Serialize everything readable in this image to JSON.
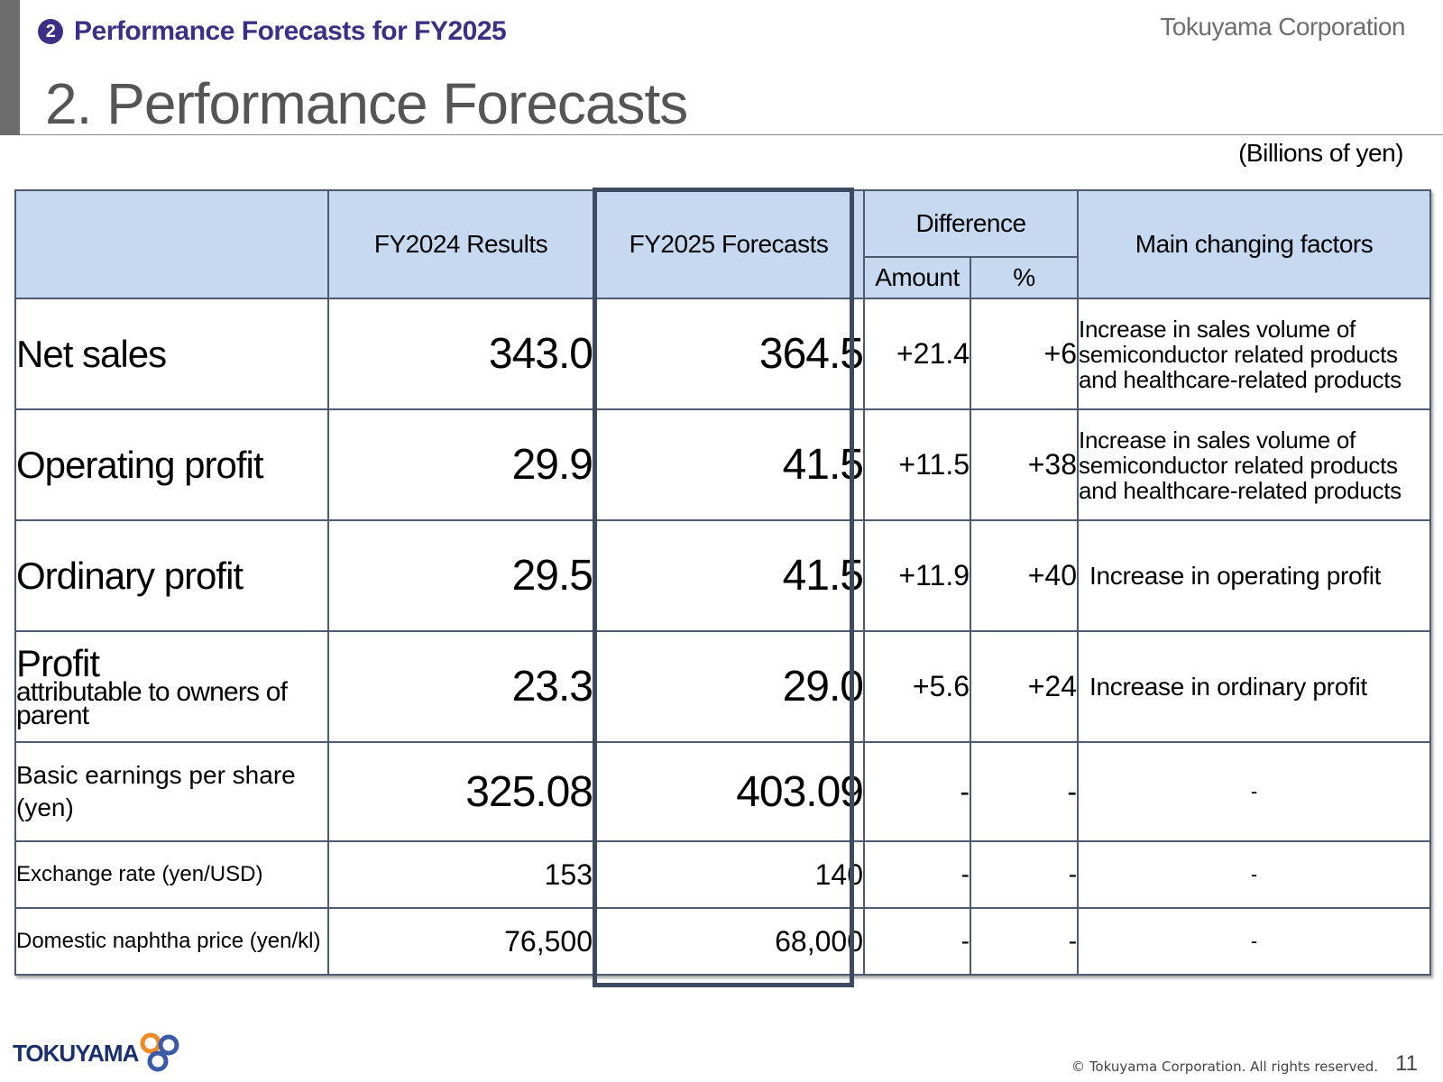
{
  "header": {
    "section_number": "2",
    "section_label": "Performance Forecasts for FY2025",
    "company": "Tokuyama Corporation",
    "title": "2. Performance Forecasts",
    "unit": "(Billions of yen)"
  },
  "table": {
    "headers": {
      "fy2024": "FY2024 Results",
      "fy2025": "FY2025 Forecasts",
      "difference": "Difference",
      "amount": "Amount",
      "percent": "%",
      "factors": "Main changing factors"
    },
    "rows": [
      {
        "label": "Net sales",
        "fy2024": "343.0",
        "fy2025": "364.5",
        "amount": "+21.4",
        "percent": "+6",
        "factor": "Increase in sales volume of semiconductor related products and healthcare-related products"
      },
      {
        "label": "Operating profit",
        "fy2024": "29.9",
        "fy2025": "41.5",
        "amount": "+11.5",
        "percent": "+38",
        "factor": "Increase in sales volume of semiconductor related products and healthcare-related products"
      },
      {
        "label": "Ordinary profit",
        "fy2024": "29.5",
        "fy2025": "41.5",
        "amount": "+11.9",
        "percent": "+40",
        "factor": "Increase in operating profit"
      },
      {
        "label": "Profit",
        "label_sub": "attributable to owners of parent",
        "fy2024": "23.3",
        "fy2025": "29.0",
        "amount": "+5.6",
        "percent": "+24",
        "factor": "Increase in ordinary profit"
      },
      {
        "label": "Basic earnings per share (yen)",
        "fy2024": "325.08",
        "fy2025": "403.09",
        "amount": "-",
        "percent": "-",
        "factor": "-"
      },
      {
        "label": "Exchange rate (yen/USD)",
        "fy2024": "153",
        "fy2025": "140",
        "amount": "-",
        "percent": "-",
        "factor": "-"
      },
      {
        "label": "Domestic naphtha price (yen/kl)",
        "fy2024": "76,500",
        "fy2025": "68,000",
        "amount": "-",
        "percent": "-",
        "factor": "-"
      }
    ]
  },
  "footer": {
    "logo_text": "TOKUYAMA",
    "copyright": "© Tokuyama Corporation. All rights reserved.",
    "page_number": "11"
  },
  "colors": {
    "accent": "#3d2f86",
    "header_fill": "#c6d9f1",
    "border": "#4e5a6d"
  }
}
